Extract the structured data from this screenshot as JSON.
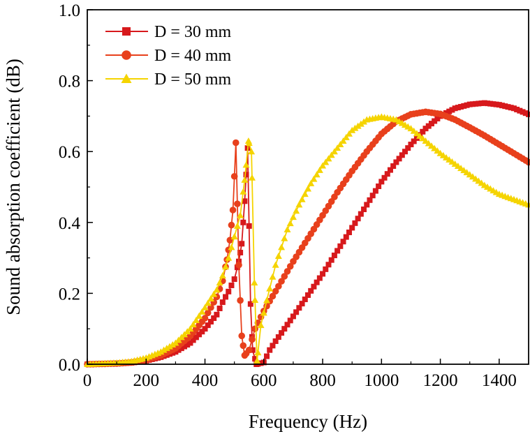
{
  "chart_data": {
    "type": "line",
    "title": "",
    "xlabel": "Frequency (Hz)",
    "ylabel": "Sound absorption coefficient (dB)",
    "xlim": [
      0,
      1500
    ],
    "ylim": [
      0.0,
      1.0
    ],
    "x_ticks": [
      0,
      200,
      400,
      600,
      800,
      1000,
      1200,
      1400
    ],
    "x_tick_labels": [
      "0",
      "200",
      "400",
      "600",
      "800",
      "1000",
      "1200",
      "1400"
    ],
    "y_ticks": [
      0.0,
      0.2,
      0.4,
      0.6,
      0.8,
      1.0
    ],
    "y_tick_labels": [
      "0.0",
      "0.2",
      "0.4",
      "0.6",
      "0.8",
      "1.0"
    ],
    "grid": false,
    "legend_position": "top-left",
    "series": [
      {
        "name": "D = 30 mm",
        "color": "#d7191c",
        "marker": "square",
        "points": [
          [
            0,
            0.0
          ],
          [
            100,
            0.002
          ],
          [
            150,
            0.004
          ],
          [
            200,
            0.01
          ],
          [
            250,
            0.02
          ],
          [
            300,
            0.035
          ],
          [
            350,
            0.06
          ],
          [
            400,
            0.1
          ],
          [
            440,
            0.14
          ],
          [
            460,
            0.175
          ],
          [
            480,
            0.205
          ],
          [
            500,
            0.24
          ],
          [
            515,
            0.29
          ],
          [
            525,
            0.34
          ],
          [
            535,
            0.46
          ],
          [
            545,
            0.61
          ],
          [
            555,
            0.17
          ],
          [
            562,
            0.04
          ],
          [
            575,
            0.0
          ],
          [
            600,
            0.005
          ],
          [
            620,
            0.04
          ],
          [
            640,
            0.065
          ],
          [
            700,
            0.135
          ],
          [
            750,
            0.195
          ],
          [
            800,
            0.255
          ],
          [
            850,
            0.32
          ],
          [
            900,
            0.385
          ],
          [
            950,
            0.45
          ],
          [
            1000,
            0.515
          ],
          [
            1050,
            0.57
          ],
          [
            1100,
            0.62
          ],
          [
            1150,
            0.665
          ],
          [
            1200,
            0.7
          ],
          [
            1250,
            0.722
          ],
          [
            1300,
            0.733
          ],
          [
            1350,
            0.737
          ],
          [
            1400,
            0.732
          ],
          [
            1450,
            0.722
          ],
          [
            1500,
            0.705
          ]
        ]
      },
      {
        "name": "D = 40 mm",
        "color": "#e8401c",
        "marker": "circle",
        "points": [
          [
            0,
            0.0
          ],
          [
            100,
            0.002
          ],
          [
            150,
            0.005
          ],
          [
            200,
            0.012
          ],
          [
            250,
            0.025
          ],
          [
            300,
            0.045
          ],
          [
            350,
            0.08
          ],
          [
            400,
            0.13
          ],
          [
            440,
            0.19
          ],
          [
            460,
            0.235
          ],
          [
            475,
            0.295
          ],
          [
            485,
            0.35
          ],
          [
            495,
            0.435
          ],
          [
            505,
            0.625
          ],
          [
            515,
            0.28
          ],
          [
            525,
            0.08
          ],
          [
            535,
            0.025
          ],
          [
            550,
            0.04
          ],
          [
            570,
            0.1
          ],
          [
            600,
            0.15
          ],
          [
            650,
            0.22
          ],
          [
            700,
            0.29
          ],
          [
            750,
            0.355
          ],
          [
            800,
            0.42
          ],
          [
            850,
            0.485
          ],
          [
            900,
            0.545
          ],
          [
            950,
            0.6
          ],
          [
            1000,
            0.65
          ],
          [
            1050,
            0.685
          ],
          [
            1100,
            0.705
          ],
          [
            1150,
            0.712
          ],
          [
            1200,
            0.706
          ],
          [
            1250,
            0.69
          ],
          [
            1300,
            0.668
          ],
          [
            1350,
            0.645
          ],
          [
            1400,
            0.62
          ],
          [
            1450,
            0.595
          ],
          [
            1500,
            0.57
          ]
        ]
      },
      {
        "name": "D = 50 mm",
        "color": "#f5d400",
        "marker": "triangle",
        "points": [
          [
            0,
            0.0
          ],
          [
            50,
            0.002
          ],
          [
            100,
            0.004
          ],
          [
            150,
            0.008
          ],
          [
            200,
            0.018
          ],
          [
            250,
            0.035
          ],
          [
            300,
            0.06
          ],
          [
            350,
            0.1
          ],
          [
            400,
            0.16
          ],
          [
            440,
            0.21
          ],
          [
            460,
            0.25
          ],
          [
            480,
            0.3
          ],
          [
            500,
            0.36
          ],
          [
            520,
            0.42
          ],
          [
            535,
            0.52
          ],
          [
            548,
            0.63
          ],
          [
            558,
            0.6
          ],
          [
            568,
            0.23
          ],
          [
            577,
            0.01
          ],
          [
            590,
            0.11
          ],
          [
            610,
            0.18
          ],
          [
            640,
            0.28
          ],
          [
            680,
            0.38
          ],
          [
            720,
            0.45
          ],
          [
            760,
            0.51
          ],
          [
            800,
            0.56
          ],
          [
            850,
            0.61
          ],
          [
            900,
            0.66
          ],
          [
            950,
            0.69
          ],
          [
            1000,
            0.698
          ],
          [
            1050,
            0.69
          ],
          [
            1100,
            0.665
          ],
          [
            1150,
            0.63
          ],
          [
            1200,
            0.595
          ],
          [
            1250,
            0.565
          ],
          [
            1300,
            0.535
          ],
          [
            1350,
            0.505
          ],
          [
            1400,
            0.48
          ],
          [
            1450,
            0.465
          ],
          [
            1500,
            0.45
          ]
        ]
      }
    ]
  }
}
